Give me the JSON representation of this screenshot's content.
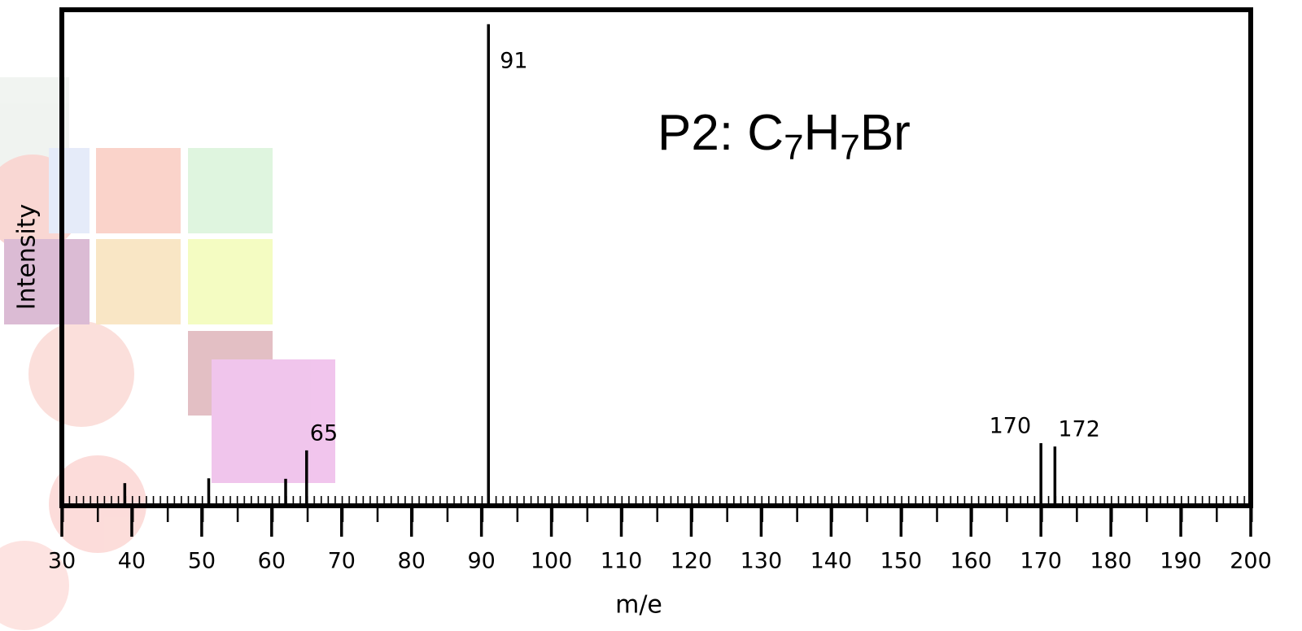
{
  "chart_data": {
    "type": "spectrum",
    "title": "P2: C7H7Br",
    "x_label": "m/e",
    "y_label": "Intensity",
    "x": [
      39,
      51,
      62,
      65,
      91,
      170,
      172
    ],
    "values": [
      4.7,
      5.7,
      5.6,
      11.5,
      100,
      13,
      12.3
    ],
    "peak_labels": [
      null,
      null,
      null,
      "65",
      "91",
      "170",
      "172"
    ],
    "color": "#000000",
    "xlim": [
      30,
      200
    ],
    "ylim": [
      0,
      103
    ],
    "xticks": [
      30,
      40,
      50,
      60,
      70,
      80,
      90,
      100,
      110,
      120,
      130,
      140,
      150,
      160,
      170,
      180,
      190,
      200
    ]
  }
}
